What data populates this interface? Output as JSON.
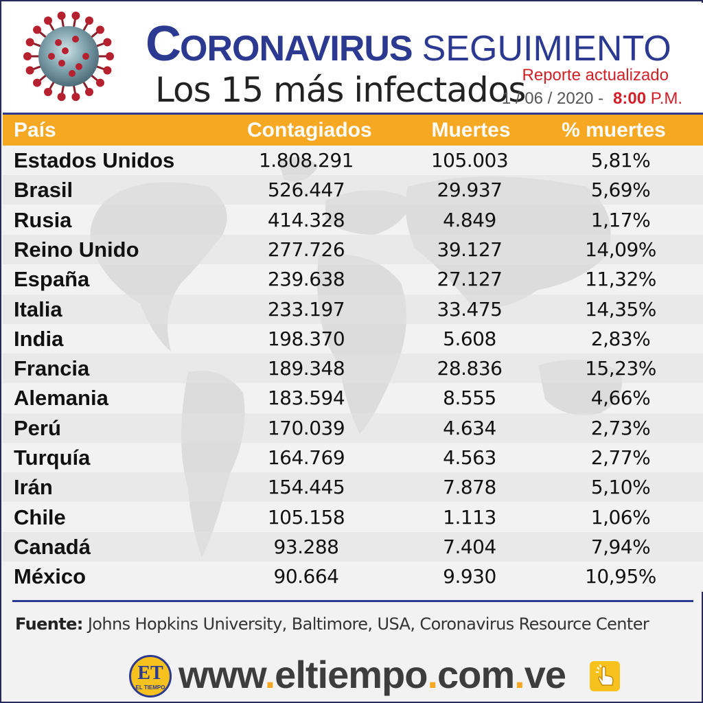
{
  "header": {
    "title_first_letter": "C",
    "title_rest": "ORONAVIRUS",
    "title_second": "SEGUIMIENTO",
    "subtitle": "Los 15 más infectados",
    "report_label": "Reporte actualizado",
    "date": "1 / 06 / 2020 -",
    "time": "8:00",
    "ampm": "P.M.",
    "virus_icon": "coronavirus-icon"
  },
  "colors": {
    "header_blue": "#2b3990",
    "table_header_orange": "#f7a823",
    "accent_red": "#d21f27"
  },
  "chart_data": {
    "type": "table",
    "columns": [
      "País",
      "Contagiados",
      "Muertes",
      "% muertes"
    ],
    "rows": [
      [
        "Estados Unidos",
        "1.808.291",
        "105.003",
        "5,81%"
      ],
      [
        "Brasil",
        "526.447",
        "29.937",
        "5,69%"
      ],
      [
        "Rusia",
        "414.328",
        "4.849",
        "1,17%"
      ],
      [
        "Reino Unido",
        "277.726",
        "39.127",
        "14,09%"
      ],
      [
        "España",
        "239.638",
        "27.127",
        "11,32%"
      ],
      [
        "Italia",
        "233.197",
        "33.475",
        "14,35%"
      ],
      [
        "India",
        "198.370",
        "5.608",
        "2,83%"
      ],
      [
        "Francia",
        "189.348",
        "28.836",
        "15,23%"
      ],
      [
        "Alemania",
        "183.594",
        "8.555",
        "4,66%"
      ],
      [
        "Perú",
        "170.039",
        "4.634",
        "2,73%"
      ],
      [
        "Turquía",
        "164.769",
        "4.563",
        "2,77%"
      ],
      [
        "Irán",
        "154.445",
        "7.878",
        "5,10%"
      ],
      [
        "Chile",
        "105.158",
        "1.113",
        "1,06%"
      ],
      [
        "Canadá",
        "93.288",
        "7.404",
        "7,94%"
      ],
      [
        "México",
        "90.664",
        "9.930",
        "10,95%"
      ]
    ]
  },
  "footer": {
    "source_label": "Fuente:",
    "source_text": " Johns Hopkins University, Baltimore, USA, Coronavirus Resource Center",
    "logo_text": "ET",
    "logo_subtext": "EL TIEMPO",
    "url_parts": [
      "www",
      ".",
      "eltiempo",
      ".",
      "com",
      ".",
      "ve"
    ],
    "click_icon": "hand-pointer-icon"
  }
}
